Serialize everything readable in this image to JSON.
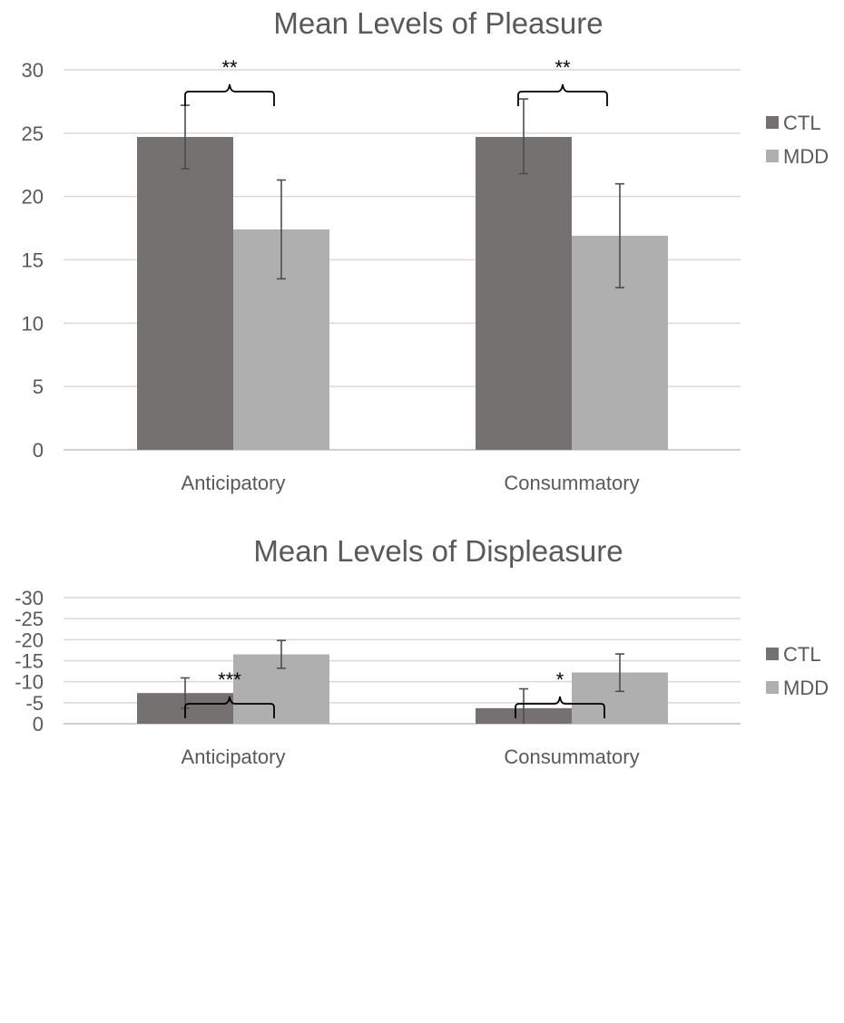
{
  "colors": {
    "CTL": "#767171",
    "MDD": "#afafaf"
  },
  "chart_data": [
    {
      "type": "bar",
      "title": "Mean Levels of Pleasure",
      "categories": [
        "Anticipatory",
        "Consummatory"
      ],
      "ylim": [
        0,
        30
      ],
      "yticks": [
        0,
        5,
        10,
        15,
        20,
        25,
        30
      ],
      "ytick_labels": [
        "0",
        "5",
        "10",
        "15",
        "20",
        "25",
        "30"
      ],
      "grid": true,
      "legend_position": "right",
      "series": [
        {
          "name": "CTL",
          "values": [
            24.7,
            24.7
          ],
          "err_low": [
            22.2,
            21.8
          ],
          "err_high": [
            27.2,
            27.7
          ]
        },
        {
          "name": "MDD",
          "values": [
            17.4,
            16.9
          ],
          "err_low": [
            13.5,
            12.8
          ],
          "err_high": [
            21.3,
            21.0
          ]
        }
      ],
      "significance": [
        "**",
        "**"
      ]
    },
    {
      "type": "bar",
      "title": "Mean Levels of Displeasure",
      "categories": [
        "Anticipatory",
        "Consummatory"
      ],
      "ylim": [
        0,
        30
      ],
      "yticks": [
        0,
        5,
        10,
        15,
        20,
        25,
        30
      ],
      "ytick_labels": [
        "0",
        "-5",
        "-10",
        "-15",
        "-20",
        "-25",
        "-30"
      ],
      "grid": true,
      "legend_position": "right",
      "series": [
        {
          "name": "CTL",
          "values": [
            7.3,
            3.7
          ],
          "err_low": [
            3.7,
            0
          ],
          "err_high": [
            10.9,
            8.3
          ]
        },
        {
          "name": "MDD",
          "values": [
            16.5,
            12.2
          ],
          "err_low": [
            13.2,
            7.7
          ],
          "err_high": [
            19.8,
            16.6
          ]
        }
      ],
      "significance": [
        "***",
        "*"
      ]
    }
  ]
}
